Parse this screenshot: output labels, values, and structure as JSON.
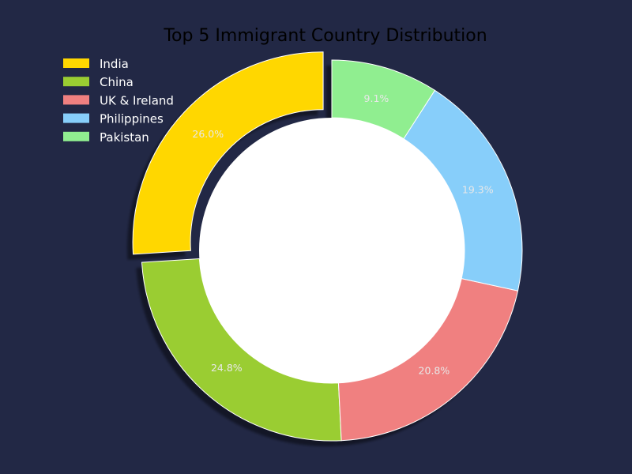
{
  "chart_data": {
    "type": "pie",
    "variant": "donut",
    "title": "Top 5 Immigrant Country Distribution",
    "categories": [
      "India",
      "China",
      "UK & Ireland",
      "Philippines",
      "Pakistan"
    ],
    "values": [
      26.0,
      24.8,
      20.8,
      19.3,
      9.1
    ],
    "labels": [
      "26.0%",
      "24.8%",
      "20.8%",
      "19.3%",
      "9.1%"
    ],
    "colors": [
      "#ffd700",
      "#9acd32",
      "#f08080",
      "#87cefa",
      "#90ee90"
    ],
    "exploded": [
      "India"
    ],
    "shadow": true,
    "legend_position": "top-left",
    "background": "#222845",
    "center_color": "#ffffff"
  }
}
